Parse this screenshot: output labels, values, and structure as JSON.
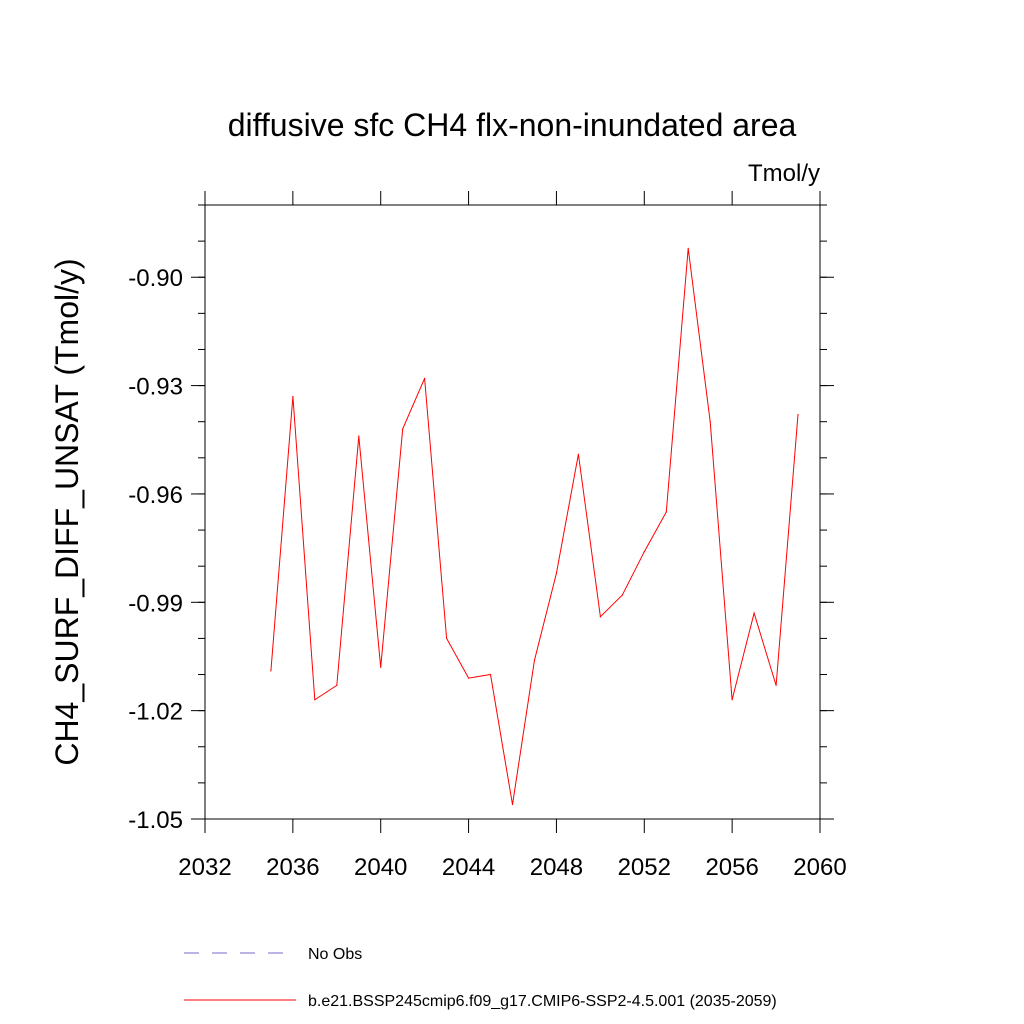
{
  "chart_data": {
    "type": "line",
    "title": "diffusive sfc CH4 flx-non-inundated area",
    "units": "Tmol/y",
    "xlabel": "",
    "ylabel": "CH4_SURF_DIFF_UNSAT  (Tmol/y)",
    "xlim": [
      2032,
      2060
    ],
    "ylim": [
      -1.05,
      -0.88
    ],
    "xticks": [
      "2032",
      "2036",
      "2040",
      "2044",
      "2048",
      "2052",
      "2056",
      "2060"
    ],
    "yticks": [
      "-0.90",
      "-0.93",
      "-0.96",
      "-0.99",
      "-1.02",
      "-1.05"
    ],
    "grid": false,
    "legend_placement": "bottom",
    "series": [
      {
        "name": "b.e21.BSSP245cmip6.f09_g17.CMIP6-SSP2-4.5.001 (2035-2059)",
        "color": "#ff0000",
        "style": "solid",
        "x": [
          2035,
          2036,
          2037,
          2038,
          2039,
          2040,
          2041,
          2042,
          2043,
          2044,
          2045,
          2046,
          2047,
          2048,
          2049,
          2050,
          2051,
          2052,
          2053,
          2054,
          2055,
          2056,
          2057,
          2058,
          2059
        ],
        "values": [
          -1.009,
          -0.933,
          -1.017,
          -1.013,
          -0.944,
          -1.008,
          -0.942,
          -0.928,
          -1.0,
          -1.011,
          -1.01,
          -1.046,
          -1.006,
          -0.982,
          -0.949,
          -0.994,
          -0.988,
          -0.976,
          -0.965,
          -0.892,
          -0.94,
          -1.017,
          -0.993,
          -1.013,
          -0.938
        ]
      }
    ],
    "legend": [
      {
        "label": "No Obs",
        "color": "#7b68c8",
        "style": "dashed"
      },
      {
        "label": "b.e21.BSSP245cmip6.f09_g17.CMIP6-SSP2-4.5.001 (2035-2059)",
        "color": "#ff0000",
        "style": "solid"
      }
    ]
  }
}
